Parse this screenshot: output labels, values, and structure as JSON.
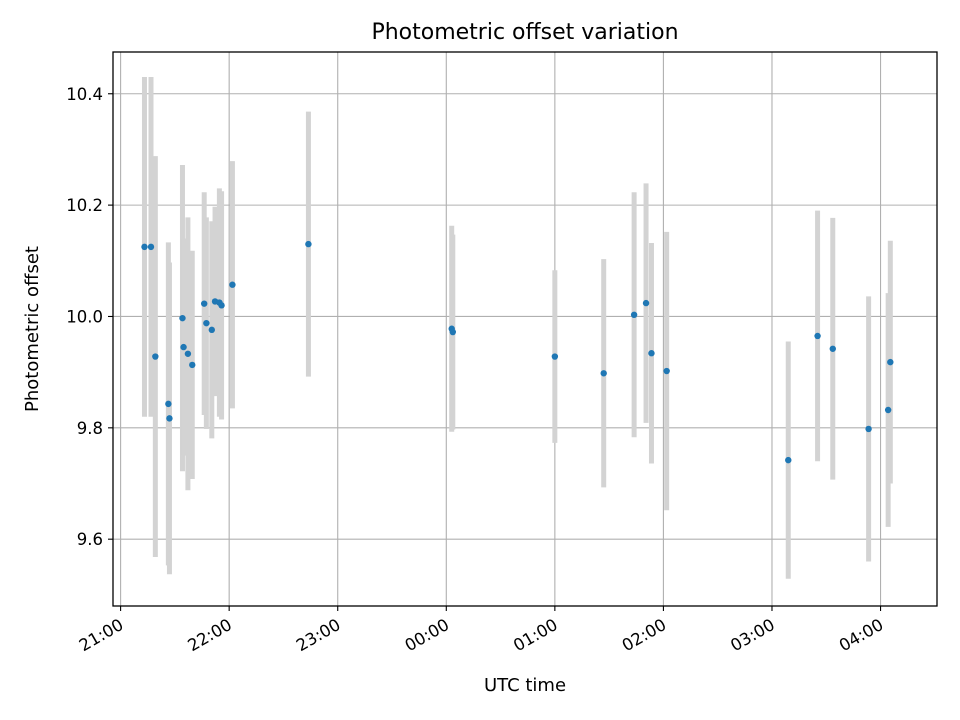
{
  "chart_data": {
    "type": "scatter",
    "title": "Photometric offset variation",
    "xlabel": "UTC time",
    "ylabel": "Photometric offset",
    "xlim": [
      "21:00",
      "04:00"
    ],
    "xlim_hours": [
      20.93,
      28.52
    ],
    "ylim": [
      9.48,
      10.475
    ],
    "grid": true,
    "x_ticks": [
      {
        "value": 21.0,
        "label": "21:00"
      },
      {
        "value": 22.0,
        "label": "22:00"
      },
      {
        "value": 23.0,
        "label": "23:00"
      },
      {
        "value": 24.0,
        "label": "00:00"
      },
      {
        "value": 25.0,
        "label": "01:00"
      },
      {
        "value": 26.0,
        "label": "02:00"
      },
      {
        "value": 27.0,
        "label": "03:00"
      },
      {
        "value": 28.0,
        "label": "04:00"
      }
    ],
    "y_ticks": [
      {
        "value": 9.6,
        "label": "9.6"
      },
      {
        "value": 9.8,
        "label": "9.8"
      },
      {
        "value": 10.0,
        "label": "10.0"
      },
      {
        "value": 10.2,
        "label": "10.2"
      },
      {
        "value": 10.4,
        "label": "10.4"
      }
    ],
    "points": [
      {
        "t": 21.22,
        "y": 10.125,
        "err": 0.305
      },
      {
        "t": 21.28,
        "y": 10.125,
        "err": 0.305
      },
      {
        "t": 21.32,
        "y": 9.928,
        "err": 0.36
      },
      {
        "t": 21.44,
        "y": 9.843,
        "err": 0.29
      },
      {
        "t": 21.45,
        "y": 9.817,
        "err": 0.28
      },
      {
        "t": 21.57,
        "y": 9.997,
        "err": 0.275
      },
      {
        "t": 21.58,
        "y": 9.945,
        "err": 0.195
      },
      {
        "t": 21.62,
        "y": 9.933,
        "err": 0.245
      },
      {
        "t": 21.66,
        "y": 9.913,
        "err": 0.205
      },
      {
        "t": 21.77,
        "y": 10.023,
        "err": 0.2
      },
      {
        "t": 21.79,
        "y": 9.988,
        "err": 0.19
      },
      {
        "t": 21.84,
        "y": 9.976,
        "err": 0.195
      },
      {
        "t": 21.87,
        "y": 10.027,
        "err": 0.17
      },
      {
        "t": 21.91,
        "y": 10.025,
        "err": 0.205
      },
      {
        "t": 21.93,
        "y": 10.02,
        "err": 0.205
      },
      {
        "t": 22.03,
        "y": 10.057,
        "err": 0.222
      },
      {
        "t": 22.73,
        "y": 10.13,
        "err": 0.238
      },
      {
        "t": 24.05,
        "y": 9.978,
        "err": 0.185
      },
      {
        "t": 24.06,
        "y": 9.972,
        "err": 0.175
      },
      {
        "t": 25.0,
        "y": 9.928,
        "err": 0.155
      },
      {
        "t": 25.45,
        "y": 9.898,
        "err": 0.205
      },
      {
        "t": 25.73,
        "y": 10.003,
        "err": 0.22
      },
      {
        "t": 25.84,
        "y": 10.024,
        "err": 0.215
      },
      {
        "t": 25.89,
        "y": 9.934,
        "err": 0.198
      },
      {
        "t": 26.03,
        "y": 9.902,
        "err": 0.25
      },
      {
        "t": 27.15,
        "y": 9.742,
        "err": 0.213
      },
      {
        "t": 27.42,
        "y": 9.965,
        "err": 0.225
      },
      {
        "t": 27.56,
        "y": 9.942,
        "err": 0.235
      },
      {
        "t": 27.89,
        "y": 9.798,
        "err": 0.238
      },
      {
        "t": 28.07,
        "y": 9.832,
        "err": 0.21
      },
      {
        "t": 28.09,
        "y": 9.918,
        "err": 0.218
      }
    ],
    "colors": {
      "marker": "#1f77b4",
      "errorbar": "#d3d3d3",
      "grid": "#b0b0b0",
      "axes": "#000000"
    }
  }
}
